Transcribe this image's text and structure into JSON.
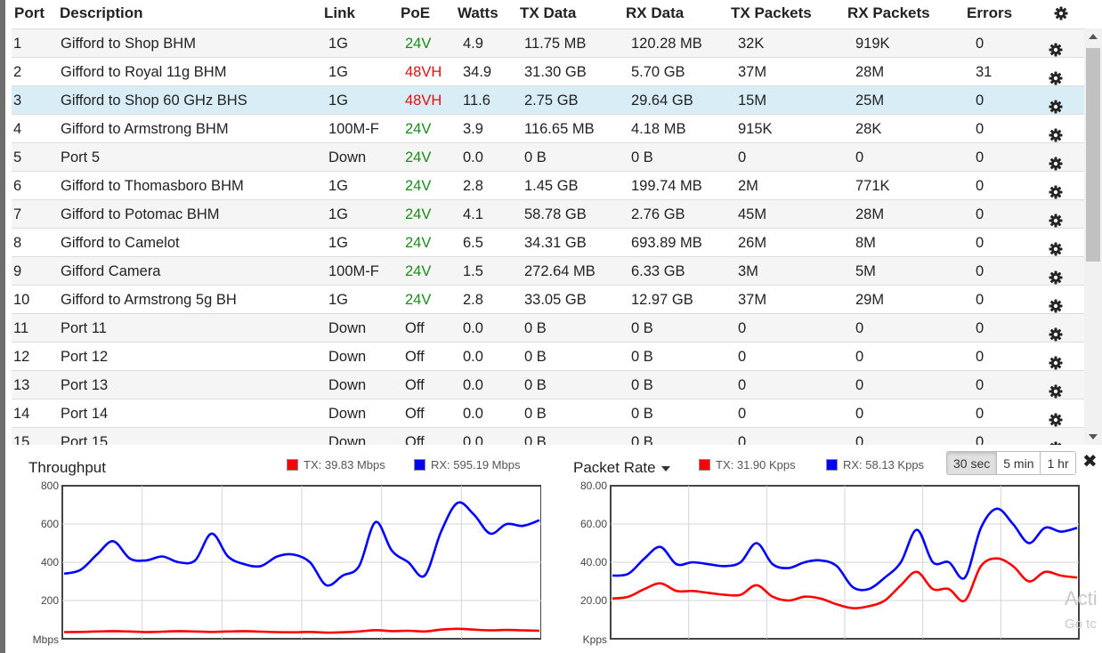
{
  "table": {
    "columns": [
      "Port",
      "Description",
      "Link",
      "PoE",
      "Watts",
      "TX Data",
      "RX Data",
      "TX Packets",
      "RX Packets",
      "Errors"
    ],
    "rows": [
      {
        "port": "1",
        "desc": "Gifford to Shop BHM",
        "link": "1G",
        "poe": "24V",
        "poe_state": "green",
        "watts": "4.9",
        "tx": "11.75 MB",
        "rx": "120.28 MB",
        "txp": "32K",
        "rxp": "919K",
        "err": "0"
      },
      {
        "port": "2",
        "desc": "Gifford to Royal 11g BHM",
        "link": "1G",
        "poe": "48VH",
        "poe_state": "red",
        "watts": "34.9",
        "tx": "31.30 GB",
        "rx": "5.70 GB",
        "txp": "37M",
        "rxp": "28M",
        "err": "31"
      },
      {
        "port": "3",
        "desc": "Gifford to Shop 60 GHz BHS",
        "link": "1G",
        "poe": "48VH",
        "poe_state": "red",
        "watts": "11.6",
        "tx": "2.75 GB",
        "rx": "29.64 GB",
        "txp": "15M",
        "rxp": "25M",
        "err": "0",
        "selected": true
      },
      {
        "port": "4",
        "desc": "Gifford to Armstrong BHM",
        "link": "100M-F",
        "poe": "24V",
        "poe_state": "green",
        "watts": "3.9",
        "tx": "116.65 MB",
        "rx": "4.18 MB",
        "txp": "915K",
        "rxp": "28K",
        "err": "0"
      },
      {
        "port": "5",
        "desc": "Port 5",
        "link": "Down",
        "poe": "24V",
        "poe_state": "green",
        "watts": "0.0",
        "tx": "0 B",
        "rx": "0 B",
        "txp": "0",
        "rxp": "0",
        "err": "0"
      },
      {
        "port": "6",
        "desc": "Gifford to Thomasboro BHM",
        "link": "1G",
        "poe": "24V",
        "poe_state": "green",
        "watts": "2.8",
        "tx": "1.45 GB",
        "rx": "199.74 MB",
        "txp": "2M",
        "rxp": "771K",
        "err": "0"
      },
      {
        "port": "7",
        "desc": "Gifford to Potomac BHM",
        "link": "1G",
        "poe": "24V",
        "poe_state": "green",
        "watts": "4.1",
        "tx": "58.78 GB",
        "rx": "2.76 GB",
        "txp": "45M",
        "rxp": "28M",
        "err": "0"
      },
      {
        "port": "8",
        "desc": "Gifford to Camelot",
        "link": "1G",
        "poe": "24V",
        "poe_state": "green",
        "watts": "6.5",
        "tx": "34.31 GB",
        "rx": "693.89 MB",
        "txp": "26M",
        "rxp": "8M",
        "err": "0"
      },
      {
        "port": "9",
        "desc": "Gifford Camera",
        "link": "100M-F",
        "poe": "24V",
        "poe_state": "green",
        "watts": "1.5",
        "tx": "272.64 MB",
        "rx": "6.33 GB",
        "txp": "3M",
        "rxp": "5M",
        "err": "0"
      },
      {
        "port": "10",
        "desc": "Gifford to Armstrong 5g BH",
        "link": "1G",
        "poe": "24V",
        "poe_state": "green",
        "watts": "2.8",
        "tx": "33.05 GB",
        "rx": "12.97 GB",
        "txp": "37M",
        "rxp": "29M",
        "err": "0"
      },
      {
        "port": "11",
        "desc": "Port 11",
        "link": "Down",
        "poe": "Off",
        "poe_state": "off",
        "watts": "0.0",
        "tx": "0 B",
        "rx": "0 B",
        "txp": "0",
        "rxp": "0",
        "err": "0"
      },
      {
        "port": "12",
        "desc": "Port 12",
        "link": "Down",
        "poe": "Off",
        "poe_state": "off",
        "watts": "0.0",
        "tx": "0 B",
        "rx": "0 B",
        "txp": "0",
        "rxp": "0",
        "err": "0"
      },
      {
        "port": "13",
        "desc": "Port 13",
        "link": "Down",
        "poe": "Off",
        "poe_state": "off",
        "watts": "0.0",
        "tx": "0 B",
        "rx": "0 B",
        "txp": "0",
        "rxp": "0",
        "err": "0"
      },
      {
        "port": "14",
        "desc": "Port 14",
        "link": "Down",
        "poe": "Off",
        "poe_state": "off",
        "watts": "0.0",
        "tx": "0 B",
        "rx": "0 B",
        "txp": "0",
        "rxp": "0",
        "err": "0"
      },
      {
        "port": "15",
        "desc": "Port 15",
        "link": "Down",
        "poe": "Off",
        "poe_state": "off",
        "watts": "0.0",
        "tx": "0 B",
        "rx": "0 B",
        "txp": "0",
        "rxp": "0",
        "err": "0"
      }
    ]
  },
  "icons": {
    "header_settings": "gear-icon",
    "row_settings": "gear-icon",
    "close": "close-icon",
    "dropdown": "caret-down-icon"
  },
  "colors": {
    "tx": "#ff0000",
    "rx": "#0000ff",
    "poe_green": "#1a8a1a",
    "poe_red": "#e01010",
    "selected_row": "#d9edf7"
  },
  "throughput": {
    "title": "Throughput",
    "legend_tx": "TX: 39.83 Mbps",
    "legend_rx": "RX: 595.19 Mbps"
  },
  "packet_rate": {
    "title": "Packet Rate",
    "legend_tx": "TX: 31.90 Kpps",
    "legend_rx": "RX: 58.13 Kpps"
  },
  "time_buttons": [
    "30 sec",
    "5 min",
    "1 hr"
  ],
  "active_time_button": "30 sec",
  "close_label": "✖",
  "watermark": {
    "line1": "Acti",
    "line2": "Go tc"
  },
  "chart_data": [
    {
      "type": "line",
      "title": "Throughput",
      "ylabel": "Mbps",
      "ylim": [
        0,
        800
      ],
      "yticks": [
        200,
        400,
        600,
        800
      ],
      "x": [
        0,
        1,
        2,
        3,
        4,
        5,
        6,
        7,
        8,
        9,
        10,
        11,
        12,
        13,
        14,
        15,
        16,
        17,
        18,
        19,
        20,
        21,
        22,
        23,
        24,
        25,
        26,
        27,
        28,
        29
      ],
      "series": [
        {
          "name": "RX",
          "values": [
            340,
            360,
            440,
            510,
            420,
            410,
            430,
            400,
            410,
            550,
            430,
            390,
            380,
            430,
            440,
            400,
            280,
            330,
            380,
            610,
            460,
            400,
            330,
            560,
            710,
            650,
            550,
            600,
            590,
            620
          ]
        },
        {
          "name": "TX",
          "values": [
            35,
            36,
            38,
            40,
            38,
            35,
            37,
            40,
            38,
            36,
            38,
            40,
            37,
            35,
            34,
            36,
            32,
            34,
            38,
            45,
            40,
            42,
            38,
            48,
            52,
            48,
            44,
            46,
            44,
            42
          ]
        }
      ]
    },
    {
      "type": "line",
      "title": "Packet Rate",
      "ylabel": "Kpps",
      "ylim": [
        0,
        80
      ],
      "yticks": [
        20,
        40,
        60,
        80
      ],
      "x": [
        0,
        1,
        2,
        3,
        4,
        5,
        6,
        7,
        8,
        9,
        10,
        11,
        12,
        13,
        14,
        15,
        16,
        17,
        18,
        19,
        20,
        21,
        22,
        23,
        24,
        25,
        26,
        27,
        28,
        29
      ],
      "series": [
        {
          "name": "RX",
          "values": [
            33,
            34,
            42,
            48,
            39,
            40,
            39,
            38,
            40,
            50,
            39,
            37,
            40,
            41,
            38,
            27,
            26,
            32,
            40,
            57,
            40,
            40,
            32,
            58,
            68,
            60,
            50,
            58,
            56,
            58
          ]
        },
        {
          "name": "TX",
          "values": [
            21,
            22,
            26,
            29,
            25,
            25,
            24,
            23,
            23,
            28,
            22,
            20,
            22,
            21,
            18,
            16,
            17,
            20,
            28,
            35,
            26,
            26,
            20,
            38,
            42,
            38,
            30,
            35,
            33,
            32
          ]
        }
      ]
    }
  ]
}
